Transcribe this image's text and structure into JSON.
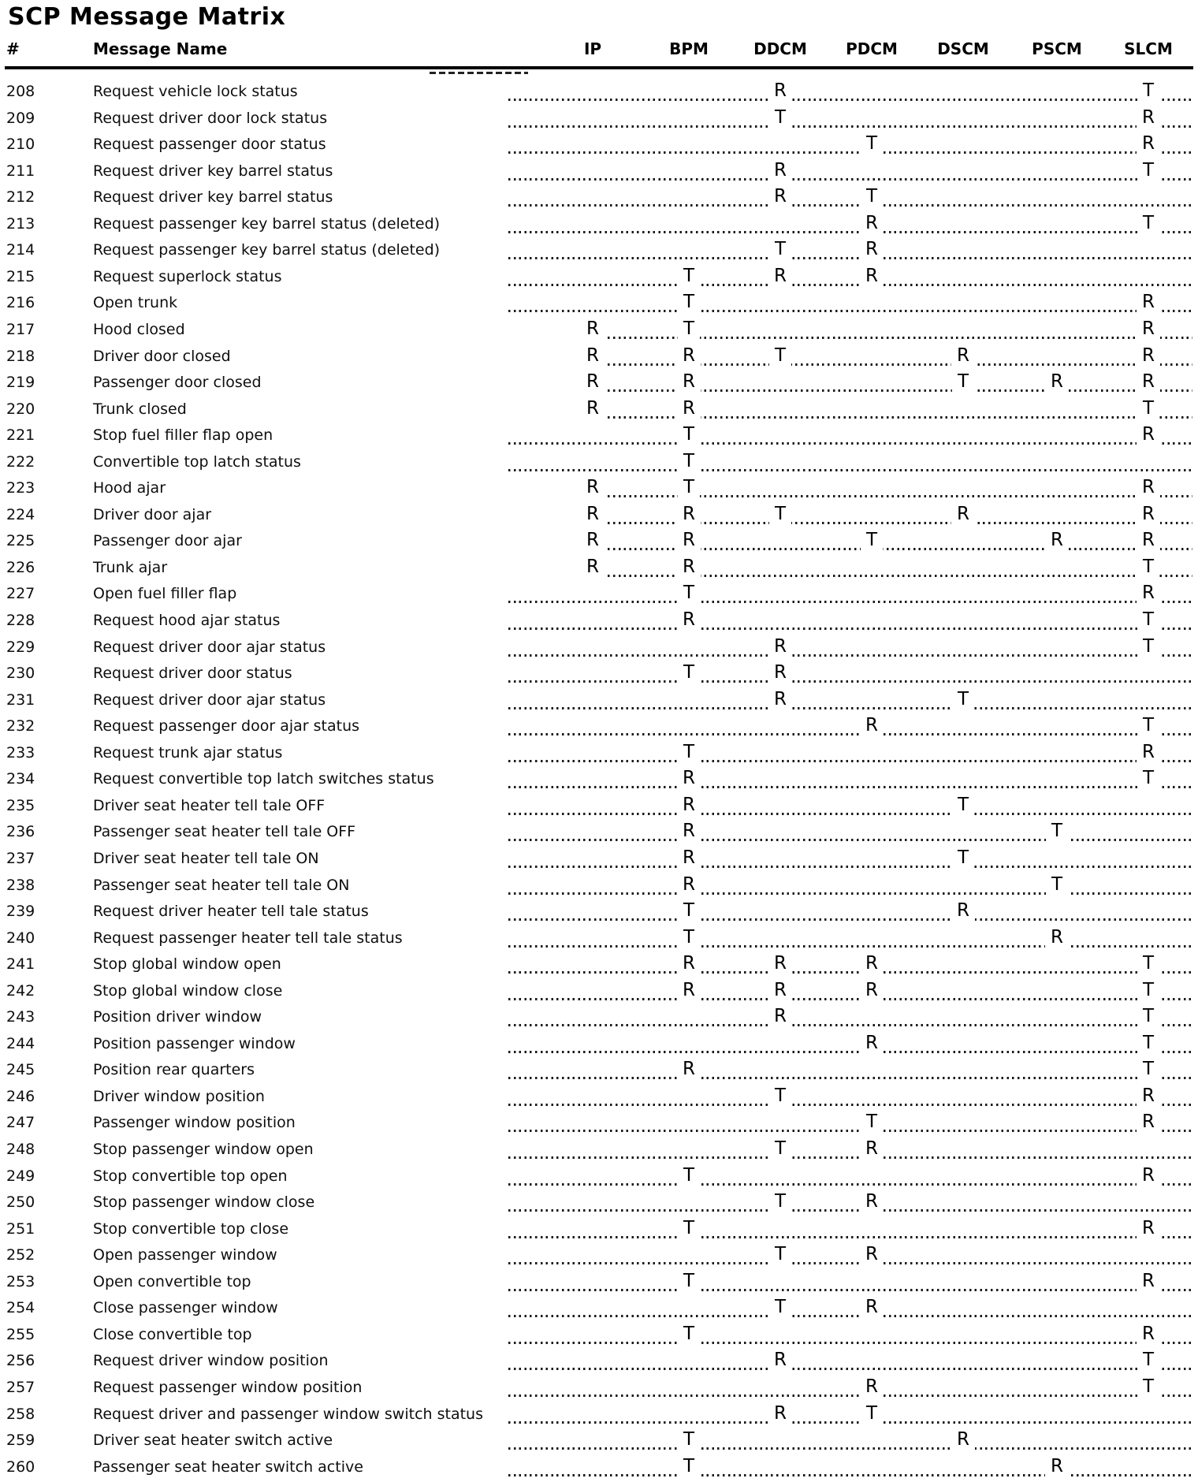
{
  "title": "SCP Message Matrix",
  "table": {
    "num_header": "#",
    "name_header": "Message Name",
    "module_headers": [
      "IP",
      "BPM",
      "DDCM",
      "PDCM",
      "DSCM",
      "PSCM",
      "SLCM"
    ],
    "rows": [
      {
        "num": "208",
        "name": "Request vehicle lock status",
        "cells": [
          [
            "DDCM",
            "R"
          ],
          [
            "SLCM",
            "T"
          ]
        ]
      },
      {
        "num": "209",
        "name": "Request driver door lock status",
        "cells": [
          [
            "DDCM",
            "T"
          ],
          [
            "SLCM",
            "R"
          ]
        ]
      },
      {
        "num": "210",
        "name": "Request passenger door status",
        "cells": [
          [
            "PDCM",
            "T"
          ],
          [
            "SLCM",
            "R"
          ]
        ]
      },
      {
        "num": "211",
        "name": "Request driver key barrel status",
        "cells": [
          [
            "DDCM",
            "R"
          ],
          [
            "SLCM",
            "T"
          ]
        ]
      },
      {
        "num": "212",
        "name": "Request driver key barrel status",
        "cells": [
          [
            "DDCM",
            "R"
          ],
          [
            "PDCM",
            "T"
          ]
        ]
      },
      {
        "num": "213",
        "name": "Request passenger key barrel status (deleted)",
        "cells": [
          [
            "PDCM",
            "R"
          ],
          [
            "SLCM",
            "T"
          ]
        ]
      },
      {
        "num": "214",
        "name": "Request passenger key barrel status (deleted)",
        "cells": [
          [
            "DDCM",
            "T"
          ],
          [
            "PDCM",
            "R"
          ]
        ]
      },
      {
        "num": "215",
        "name": "Request superlock status",
        "cells": [
          [
            "BPM",
            "T"
          ],
          [
            "DDCM",
            "R"
          ],
          [
            "PDCM",
            "R"
          ]
        ]
      },
      {
        "num": "216",
        "name": "Open trunk",
        "cells": [
          [
            "BPM",
            "T"
          ],
          [
            "SLCM",
            "R"
          ]
        ]
      },
      {
        "num": "217",
        "name": "Hood closed",
        "cells": [
          [
            "IP",
            "R"
          ],
          [
            "BPM",
            "T"
          ],
          [
            "SLCM",
            "R"
          ]
        ]
      },
      {
        "num": "218",
        "name": "Driver door closed",
        "cells": [
          [
            "IP",
            "R"
          ],
          [
            "BPM",
            "R"
          ],
          [
            "DDCM",
            "T"
          ],
          [
            "DSCM",
            "R"
          ],
          [
            "SLCM",
            "R"
          ]
        ]
      },
      {
        "num": "219",
        "name": "Passenger door closed",
        "cells": [
          [
            "IP",
            "R"
          ],
          [
            "BPM",
            "R"
          ],
          [
            "DSCM",
            "T"
          ],
          [
            "PSCM",
            "R"
          ],
          [
            "SLCM",
            "R"
          ]
        ]
      },
      {
        "num": "220",
        "name": "Trunk closed",
        "cells": [
          [
            "IP",
            "R"
          ],
          [
            "BPM",
            "R"
          ],
          [
            "SLCM",
            "T"
          ]
        ]
      },
      {
        "num": "221",
        "name": "Stop fuel filler flap open",
        "cells": [
          [
            "BPM",
            "T"
          ],
          [
            "SLCM",
            "R"
          ]
        ]
      },
      {
        "num": "222",
        "name": "Convertible top latch status",
        "cells": [
          [
            "BPM",
            "T"
          ]
        ]
      },
      {
        "num": "223",
        "name": "Hood ajar",
        "cells": [
          [
            "IP",
            "R"
          ],
          [
            "BPM",
            "T"
          ],
          [
            "SLCM",
            "R"
          ]
        ]
      },
      {
        "num": "224",
        "name": "Driver door ajar",
        "cells": [
          [
            "IP",
            "R"
          ],
          [
            "BPM",
            "R"
          ],
          [
            "DDCM",
            "T"
          ],
          [
            "DSCM",
            "R"
          ],
          [
            "SLCM",
            "R"
          ]
        ]
      },
      {
        "num": "225",
        "name": "Passenger door ajar",
        "cells": [
          [
            "IP",
            "R"
          ],
          [
            "BPM",
            "R"
          ],
          [
            "PDCM",
            "T"
          ],
          [
            "PSCM",
            "R"
          ],
          [
            "SLCM",
            "R"
          ]
        ]
      },
      {
        "num": "226",
        "name": "Trunk ajar",
        "cells": [
          [
            "IP",
            "R"
          ],
          [
            "BPM",
            "R"
          ],
          [
            "SLCM",
            "T"
          ]
        ]
      },
      {
        "num": "227",
        "name": "Open fuel filler flap",
        "cells": [
          [
            "BPM",
            "T"
          ],
          [
            "SLCM",
            "R"
          ]
        ]
      },
      {
        "num": "228",
        "name": "Request hood ajar status",
        "cells": [
          [
            "BPM",
            "R"
          ],
          [
            "SLCM",
            "T"
          ]
        ]
      },
      {
        "num": "229",
        "name": "Request driver door ajar status",
        "cells": [
          [
            "DDCM",
            "R"
          ],
          [
            "SLCM",
            "T"
          ]
        ]
      },
      {
        "num": "230",
        "name": "Request driver door status",
        "cells": [
          [
            "BPM",
            "T"
          ],
          [
            "DDCM",
            "R"
          ]
        ]
      },
      {
        "num": "231",
        "name": "Request driver door ajar status",
        "cells": [
          [
            "DDCM",
            "R"
          ],
          [
            "DSCM",
            "T"
          ]
        ]
      },
      {
        "num": "232",
        "name": "Request passenger door ajar status",
        "cells": [
          [
            "PDCM",
            "R"
          ],
          [
            "SLCM",
            "T"
          ]
        ]
      },
      {
        "num": "233",
        "name": "Request trunk ajar status",
        "cells": [
          [
            "BPM",
            "T"
          ],
          [
            "SLCM",
            "R"
          ]
        ]
      },
      {
        "num": "234",
        "name": "Request convertible top latch switches status",
        "cells": [
          [
            "BPM",
            "R"
          ],
          [
            "SLCM",
            "T"
          ]
        ]
      },
      {
        "num": "235",
        "name": "Driver seat heater tell tale OFF",
        "cells": [
          [
            "BPM",
            "R"
          ],
          [
            "DSCM",
            "T"
          ]
        ]
      },
      {
        "num": "236",
        "name": "Passenger seat heater tell tale OFF",
        "cells": [
          [
            "BPM",
            "R"
          ],
          [
            "PSCM",
            "T"
          ]
        ]
      },
      {
        "num": "237",
        "name": "Driver seat heater tell tale ON",
        "cells": [
          [
            "BPM",
            "R"
          ],
          [
            "DSCM",
            "T"
          ]
        ]
      },
      {
        "num": "238",
        "name": "Passenger seat heater tell tale ON",
        "cells": [
          [
            "BPM",
            "R"
          ],
          [
            "PSCM",
            "T"
          ]
        ]
      },
      {
        "num": "239",
        "name": "Request driver heater tell tale status",
        "cells": [
          [
            "BPM",
            "T"
          ],
          [
            "DSCM",
            "R"
          ]
        ]
      },
      {
        "num": "240",
        "name": "Request passenger heater tell tale status",
        "cells": [
          [
            "BPM",
            "T"
          ],
          [
            "PSCM",
            "R"
          ]
        ]
      },
      {
        "num": "241",
        "name": "Stop global window open",
        "cells": [
          [
            "BPM",
            "R"
          ],
          [
            "DDCM",
            "R"
          ],
          [
            "PDCM",
            "R"
          ],
          [
            "SLCM",
            "T"
          ]
        ]
      },
      {
        "num": "242",
        "name": "Stop global window close",
        "cells": [
          [
            "BPM",
            "R"
          ],
          [
            "DDCM",
            "R"
          ],
          [
            "PDCM",
            "R"
          ],
          [
            "SLCM",
            "T"
          ]
        ]
      },
      {
        "num": "243",
        "name": "Position driver window",
        "cells": [
          [
            "DDCM",
            "R"
          ],
          [
            "SLCM",
            "T"
          ]
        ]
      },
      {
        "num": "244",
        "name": "Position passenger window",
        "cells": [
          [
            "PDCM",
            "R"
          ],
          [
            "SLCM",
            "T"
          ]
        ]
      },
      {
        "num": "245",
        "name": "Position rear quarters",
        "cells": [
          [
            "BPM",
            "R"
          ],
          [
            "SLCM",
            "T"
          ]
        ]
      },
      {
        "num": "246",
        "name": "Driver window position",
        "cells": [
          [
            "DDCM",
            "T"
          ],
          [
            "SLCM",
            "R"
          ]
        ]
      },
      {
        "num": "247",
        "name": "Passenger window position",
        "cells": [
          [
            "PDCM",
            "T"
          ],
          [
            "SLCM",
            "R"
          ]
        ]
      },
      {
        "num": "248",
        "name": "Stop passenger window open",
        "cells": [
          [
            "DDCM",
            "T"
          ],
          [
            "PDCM",
            "R"
          ]
        ]
      },
      {
        "num": "249",
        "name": "Stop convertible top open",
        "cells": [
          [
            "BPM",
            "T"
          ],
          [
            "SLCM",
            "R"
          ]
        ]
      },
      {
        "num": "250",
        "name": "Stop passenger window close",
        "cells": [
          [
            "DDCM",
            "T"
          ],
          [
            "PDCM",
            "R"
          ]
        ]
      },
      {
        "num": "251",
        "name": "Stop convertible top close",
        "cells": [
          [
            "BPM",
            "T"
          ],
          [
            "SLCM",
            "R"
          ]
        ]
      },
      {
        "num": "252",
        "name": "Open passenger window",
        "cells": [
          [
            "DDCM",
            "T"
          ],
          [
            "PDCM",
            "R"
          ]
        ]
      },
      {
        "num": "253",
        "name": "Open convertible top",
        "cells": [
          [
            "BPM",
            "T"
          ],
          [
            "SLCM",
            "R"
          ]
        ]
      },
      {
        "num": "254",
        "name": "Close passenger window",
        "cells": [
          [
            "DDCM",
            "T"
          ],
          [
            "PDCM",
            "R"
          ]
        ]
      },
      {
        "num": "255",
        "name": "Close convertible top",
        "cells": [
          [
            "BPM",
            "T"
          ],
          [
            "SLCM",
            "R"
          ]
        ]
      },
      {
        "num": "256",
        "name": "Request driver window position",
        "cells": [
          [
            "DDCM",
            "R"
          ],
          [
            "SLCM",
            "T"
          ]
        ]
      },
      {
        "num": "257",
        "name": "Request passenger window position",
        "cells": [
          [
            "PDCM",
            "R"
          ],
          [
            "SLCM",
            "T"
          ]
        ]
      },
      {
        "num": "258",
        "name": "Request driver and passenger window switch status",
        "cells": [
          [
            "DDCM",
            "R"
          ],
          [
            "PDCM",
            "T"
          ]
        ]
      },
      {
        "num": "259",
        "name": "Driver seat heater switch active",
        "cells": [
          [
            "BPM",
            "T"
          ],
          [
            "DSCM",
            "R"
          ]
        ]
      },
      {
        "num": "260",
        "name": "Passenger seat heater switch active",
        "cells": [
          [
            "BPM",
            "T"
          ],
          [
            "PSCM",
            "R"
          ]
        ]
      }
    ]
  }
}
